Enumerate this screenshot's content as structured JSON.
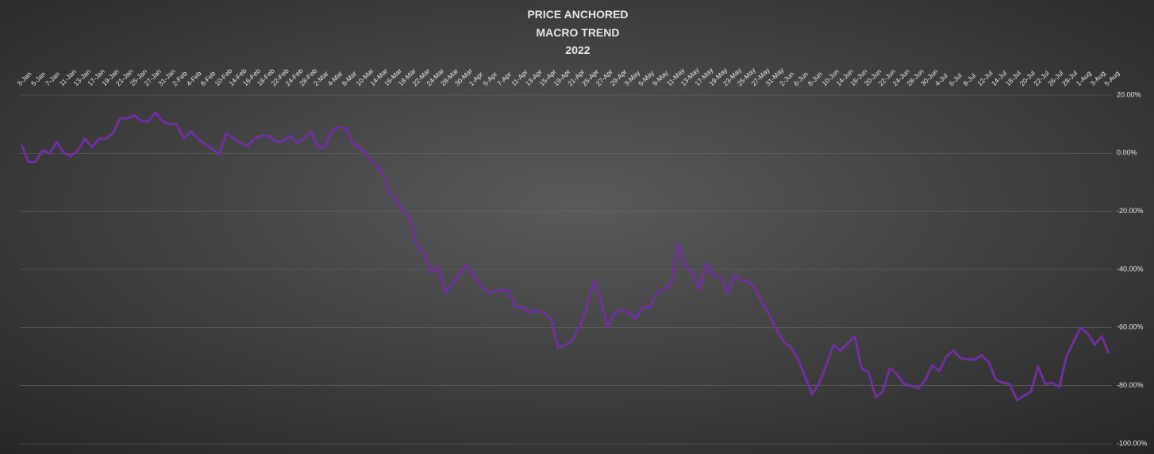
{
  "chart_data": {
    "type": "line",
    "title": [
      "PRICE ANCHORED",
      "MACRO TREND",
      "2022"
    ],
    "categories": [
      "3-Jan",
      null,
      "5-Jan",
      null,
      "7-Jan",
      null,
      "11-Jan",
      null,
      "13-Jan",
      null,
      "17-Jan",
      null,
      "19-Jan",
      null,
      "21-Jan",
      null,
      "25-Jan",
      null,
      "27-Jan",
      null,
      "31-Jan",
      null,
      "2-Feb",
      null,
      "4-Feb",
      null,
      "8-Feb",
      null,
      "10-Feb",
      null,
      "14-Feb",
      null,
      "16-Feb",
      null,
      "18-Feb",
      null,
      "22-Feb",
      null,
      "24-Feb",
      null,
      "28-Feb",
      null,
      "2-Mar",
      null,
      "4-Mar",
      null,
      "8-Mar",
      null,
      "10-Mar",
      null,
      "14-Mar",
      null,
      "16-Mar",
      null,
      "18-Mar",
      null,
      "22-Mar",
      null,
      "24-Mar",
      null,
      "28-Mar",
      null,
      "30-Mar",
      null,
      "1-Apr",
      null,
      "5-Apr",
      null,
      "7-Apr",
      null,
      "11-Apr",
      null,
      "13-Apr",
      null,
      "15-Apr",
      null,
      "19-Apr",
      null,
      "21-Apr",
      null,
      "25-Apr",
      null,
      "27-Apr",
      null,
      "29-Apr",
      null,
      "3-May",
      null,
      "5-May",
      null,
      "9-May",
      null,
      "11-May",
      null,
      "13-May",
      null,
      "17-May",
      null,
      "19-May",
      null,
      "23-May",
      null,
      "25-May",
      null,
      "27-May",
      null,
      "31-May",
      null,
      "2-Jun",
      null,
      "6-Jun",
      null,
      "8-Jun",
      null,
      "10-Jun",
      null,
      "14-Jun",
      null,
      "16-Jun",
      null,
      "20-Jun",
      null,
      "22-Jun",
      null,
      "24-Jun",
      null,
      "28-Jun",
      null,
      "30-Jun",
      null,
      "4-Jul",
      null,
      "6-Jul",
      null,
      "8-Jul",
      null,
      "12-Jul",
      null,
      "14-Jul",
      null,
      "18-Jul",
      null,
      "20-Jul",
      null,
      "22-Jul",
      null,
      "26-Jul",
      null,
      "28-Jul",
      null,
      "1-Aug",
      null,
      "3-Aug",
      null,
      "5-Aug"
    ],
    "values": [
      3,
      -3,
      -3,
      1,
      0,
      4,
      0,
      -1,
      1,
      5,
      2,
      5,
      5,
      7,
      12,
      12,
      13,
      11,
      11,
      14,
      11,
      10,
      10,
      5,
      7.5,
      5,
      3,
      1.5,
      -0.5,
      7,
      5,
      3.5,
      2.5,
      5,
      6,
      6,
      4,
      4,
      6,
      3.5,
      5,
      7.5,
      2,
      2,
      8,
      9,
      8.5,
      3,
      2,
      -1,
      -4,
      -6,
      -13,
      -16,
      -20,
      -22,
      -32,
      -34,
      -41,
      -39,
      -48,
      -45,
      -42,
      -38.5,
      -42,
      -45,
      -48,
      -47.5,
      -47,
      -47.5,
      -53,
      -53,
      -55,
      -54,
      -55,
      -57,
      -67,
      -66,
      -64.5,
      -60,
      -54,
      -44,
      -50,
      -60,
      -55,
      -54,
      -55,
      -57,
      -53,
      -53,
      -48,
      -47,
      -45,
      -31,
      -39,
      -41,
      -47,
      -38,
      -42,
      -42.5,
      -48,
      -42,
      -44,
      -44,
      -47,
      -52,
      -56,
      -61,
      -65,
      -67,
      -71,
      -77,
      -83,
      -79,
      -73,
      -66,
      -68,
      -65.5,
      -63,
      -74,
      -75.5,
      -84,
      -82,
      -74,
      -76,
      -79.5,
      -80,
      -81,
      -78,
      -73,
      -75,
      -70,
      -68,
      -70.5,
      -71,
      -71,
      -69.5,
      -72,
      -78,
      -79,
      -79.5,
      -85,
      -83.5,
      -82,
      -73.5,
      -79.5,
      -79,
      -80.5,
      -70,
      -65,
      -60,
      -62,
      -66,
      -63,
      -69
    ],
    "color": "#7030a0",
    "ylim": [
      -100,
      20
    ],
    "yticks": [
      {
        "value": 20,
        "label": "20.00%"
      },
      {
        "value": 0,
        "label": "0.00%"
      },
      {
        "value": -20,
        "label": "-20.00%"
      },
      {
        "value": -40,
        "label": "-40.00%"
      },
      {
        "value": -60,
        "label": "-60.00%"
      },
      {
        "value": -80,
        "label": "-80.00%"
      },
      {
        "value": -100,
        "label": "-100.00%"
      }
    ],
    "grid": true
  }
}
